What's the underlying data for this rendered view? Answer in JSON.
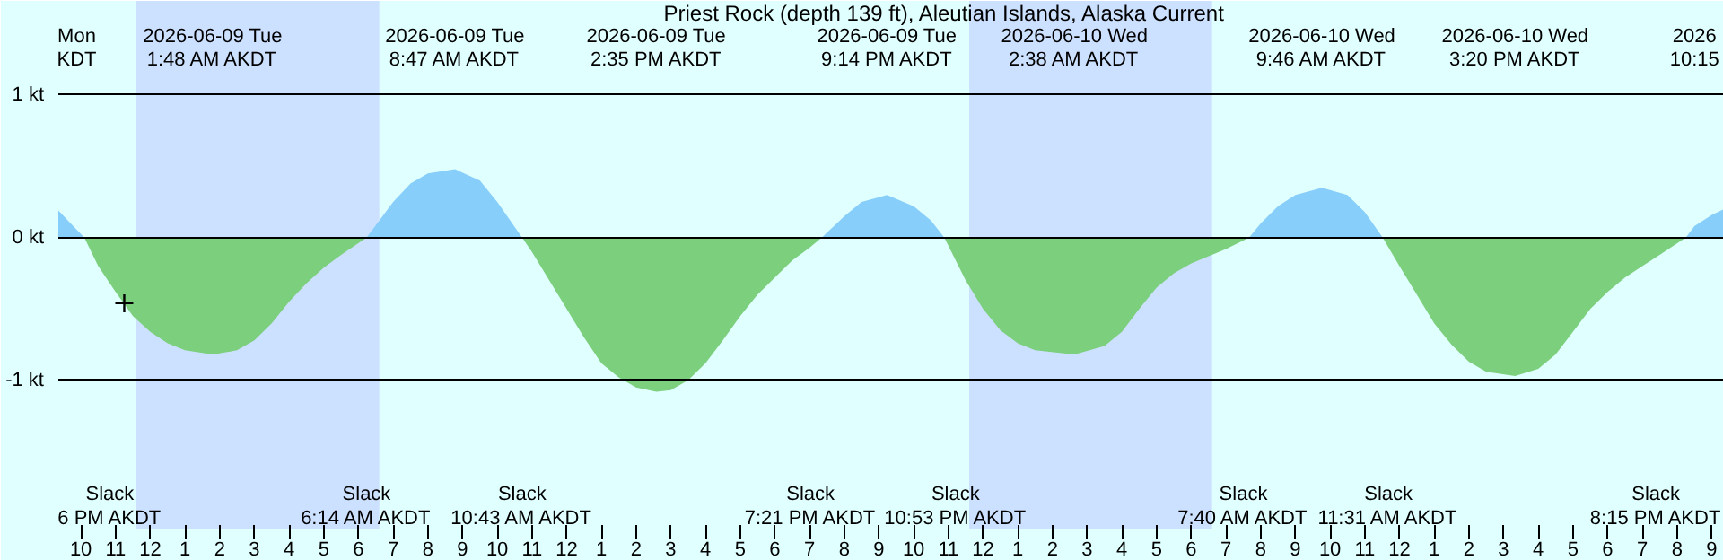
{
  "chart_data": {
    "type": "area",
    "title": "Priest Rock (depth 139 ft), Aleutian Islands, Alaska Current",
    "xlim": [
      "2026-06-08T21:21",
      "2026-06-10T21:21"
    ],
    "ylim": [
      -2.04,
      1.66
    ],
    "xticks": [
      {
        "value": "2026-06-08T22:00",
        "label": "10"
      },
      {
        "value": "2026-06-08T23:00",
        "label": "11"
      },
      {
        "value": "2026-06-09T00:00",
        "label": "12"
      },
      {
        "value": "2026-06-09T01:00",
        "label": "1"
      },
      {
        "value": "2026-06-09T02:00",
        "label": "2"
      },
      {
        "value": "2026-06-09T03:00",
        "label": "3"
      },
      {
        "value": "2026-06-09T04:00",
        "label": "4"
      },
      {
        "value": "2026-06-09T05:00",
        "label": "5"
      },
      {
        "value": "2026-06-09T06:00",
        "label": "6"
      },
      {
        "value": "2026-06-09T07:00",
        "label": "7"
      },
      {
        "value": "2026-06-09T08:00",
        "label": "8"
      },
      {
        "value": "2026-06-09T09:00",
        "label": "9"
      },
      {
        "value": "2026-06-09T10:00",
        "label": "10"
      },
      {
        "value": "2026-06-09T11:00",
        "label": "11"
      },
      {
        "value": "2026-06-09T12:00",
        "label": "12"
      },
      {
        "value": "2026-06-09T13:00",
        "label": "1"
      },
      {
        "value": "2026-06-09T14:00",
        "label": "2"
      },
      {
        "value": "2026-06-09T15:00",
        "label": "3"
      },
      {
        "value": "2026-06-09T16:00",
        "label": "4"
      },
      {
        "value": "2026-06-09T17:00",
        "label": "5"
      },
      {
        "value": "2026-06-09T18:00",
        "label": "6"
      },
      {
        "value": "2026-06-09T19:00",
        "label": "7"
      },
      {
        "value": "2026-06-09T20:00",
        "label": "8"
      },
      {
        "value": "2026-06-09T21:00",
        "label": "9"
      },
      {
        "value": "2026-06-09T22:00",
        "label": "10"
      },
      {
        "value": "2026-06-09T23:00",
        "label": "11"
      },
      {
        "value": "2026-06-10T00:00",
        "label": "12"
      },
      {
        "value": "2026-06-10T01:00",
        "label": "1"
      },
      {
        "value": "2026-06-10T02:00",
        "label": "2"
      },
      {
        "value": "2026-06-10T03:00",
        "label": "3"
      },
      {
        "value": "2026-06-10T04:00",
        "label": "4"
      },
      {
        "value": "2026-06-10T05:00",
        "label": "5"
      },
      {
        "value": "2026-06-10T06:00",
        "label": "6"
      },
      {
        "value": "2026-06-10T07:00",
        "label": "7"
      },
      {
        "value": "2026-06-10T08:00",
        "label": "8"
      },
      {
        "value": "2026-06-10T09:00",
        "label": "9"
      },
      {
        "value": "2026-06-10T10:00",
        "label": "10"
      },
      {
        "value": "2026-06-10T11:00",
        "label": "11"
      },
      {
        "value": "2026-06-10T12:00",
        "label": "12"
      },
      {
        "value": "2026-06-10T13:00",
        "label": "1"
      },
      {
        "value": "2026-06-10T14:00",
        "label": "2"
      },
      {
        "value": "2026-06-10T15:00",
        "label": "3"
      },
      {
        "value": "2026-06-10T16:00",
        "label": "4"
      },
      {
        "value": "2026-06-10T17:00",
        "label": "5"
      },
      {
        "value": "2026-06-10T18:00",
        "label": "6"
      },
      {
        "value": "2026-06-10T19:00",
        "label": "7"
      },
      {
        "value": "2026-06-10T20:00",
        "label": "8"
      },
      {
        "value": "2026-06-10T21:00",
        "label": "9"
      }
    ],
    "yticks": [
      {
        "value": 1,
        "label": "1 kt"
      },
      {
        "value": 0,
        "label": "0 kt"
      },
      {
        "value": -1,
        "label": "-1 kt"
      }
    ],
    "grid": "y",
    "bands": [
      {
        "axis": "x",
        "from": "2026-06-08T23:36",
        "to": "2026-06-09T06:36",
        "color": "#cce0ff"
      },
      {
        "axis": "x",
        "from": "2026-06-09T23:36",
        "to": "2026-06-10T06:36",
        "color": "#cce0ff"
      }
    ],
    "series": [
      {
        "color": "#87cefa",
        "x": [
          "2026-06-08T21:21",
          "2026-06-08T22:06",
          null,
          "2026-06-09T06:14",
          "2026-06-09T07:00",
          "2026-06-09T07:30",
          "2026-06-09T08:00",
          "2026-06-09T08:47",
          "2026-06-09T09:30",
          "2026-06-09T10:00",
          "2026-06-09T10:43",
          null,
          "2026-06-09T19:21",
          "2026-06-09T20:00",
          "2026-06-09T20:30",
          "2026-06-09T21:14",
          "2026-06-09T22:00",
          "2026-06-09T22:30",
          "2026-06-09T22:53",
          null,
          "2026-06-10T07:40",
          "2026-06-10T08:00",
          "2026-06-10T08:30",
          "2026-06-10T09:00",
          "2026-06-10T09:46",
          "2026-06-10T10:30",
          "2026-06-10T11:00",
          "2026-06-10T11:31",
          null,
          "2026-06-10T20:15",
          "2026-06-10T20:30",
          "2026-06-10T21:00",
          "2026-06-10T21:21"
        ],
        "values": [
          0.19,
          0,
          null,
          0,
          0.25,
          0.38,
          0.45,
          0.48,
          0.4,
          0.25,
          0,
          null,
          0,
          0.15,
          0.25,
          0.3,
          0.22,
          0.12,
          0,
          null,
          0,
          0.1,
          0.22,
          0.3,
          0.35,
          0.3,
          0.18,
          0,
          null,
          0,
          0.08,
          0.16,
          0.2
        ]
      },
      {
        "color": "#7ccf7c",
        "x": [
          "2026-06-08T22:06",
          "2026-06-08T22:30",
          "2026-06-08T23:00",
          "2026-06-08T23:30",
          "2026-06-09T00:00",
          "2026-06-09T00:30",
          "2026-06-09T01:00",
          "2026-06-09T01:48",
          "2026-06-09T02:30",
          "2026-06-09T03:00",
          "2026-06-09T03:30",
          "2026-06-09T04:00",
          "2026-06-09T04:30",
          "2026-06-09T05:00",
          "2026-06-09T05:30",
          "2026-06-09T06:14",
          null,
          "2026-06-09T10:43",
          "2026-06-09T11:00",
          "2026-06-09T11:30",
          "2026-06-09T12:00",
          "2026-06-09T12:30",
          "2026-06-09T13:00",
          "2026-06-09T13:30",
          "2026-06-09T14:00",
          "2026-06-09T14:35",
          "2026-06-09T15:00",
          "2026-06-09T15:30",
          "2026-06-09T16:00",
          "2026-06-09T16:30",
          "2026-06-09T17:00",
          "2026-06-09T17:30",
          "2026-06-09T18:00",
          "2026-06-09T18:30",
          "2026-06-09T19:00",
          "2026-06-09T19:21",
          null,
          "2026-06-09T22:53",
          "2026-06-09T23:30",
          "2026-06-10T00:00",
          "2026-06-10T00:30",
          "2026-06-10T01:00",
          "2026-06-10T01:30",
          "2026-06-10T02:38",
          "2026-06-10T03:30",
          "2026-06-10T04:00",
          "2026-06-10T04:30",
          "2026-06-10T05:00",
          "2026-06-10T05:30",
          "2026-06-10T06:00",
          "2026-06-10T06:30",
          "2026-06-10T07:00",
          "2026-06-10T07:40",
          null,
          "2026-06-10T11:31",
          "2026-06-10T12:00",
          "2026-06-10T12:30",
          "2026-06-10T13:00",
          "2026-06-10T13:30",
          "2026-06-10T14:00",
          "2026-06-10T14:30",
          "2026-06-10T15:20",
          "2026-06-10T16:00",
          "2026-06-10T16:30",
          "2026-06-10T17:00",
          "2026-06-10T17:30",
          "2026-06-10T18:00",
          "2026-06-10T18:30",
          "2026-06-10T19:00",
          "2026-06-10T19:30",
          "2026-06-10T20:15"
        ],
        "values": [
          0,
          -0.2,
          -0.38,
          -0.55,
          -0.66,
          -0.74,
          -0.79,
          -0.82,
          -0.79,
          -0.72,
          -0.6,
          -0.45,
          -0.32,
          -0.21,
          -0.12,
          0,
          null,
          0,
          -0.1,
          -0.3,
          -0.5,
          -0.7,
          -0.88,
          -0.98,
          -1.05,
          -1.08,
          -1.07,
          -1.0,
          -0.88,
          -0.72,
          -0.55,
          -0.4,
          -0.28,
          -0.16,
          -0.07,
          0,
          null,
          0,
          -0.3,
          -0.5,
          -0.65,
          -0.74,
          -0.79,
          -0.82,
          -0.76,
          -0.66,
          -0.5,
          -0.35,
          -0.25,
          -0.18,
          -0.13,
          -0.08,
          0,
          null,
          0,
          -0.2,
          -0.4,
          -0.6,
          -0.75,
          -0.87,
          -0.94,
          -0.97,
          -0.92,
          -0.82,
          -0.66,
          -0.5,
          -0.38,
          -0.28,
          -0.2,
          -0.12,
          0
        ]
      },
      {
        "type": "scatter",
        "color": "#000000",
        "marker": "cross",
        "x": [
          "2026-06-08T23:15"
        ],
        "values": [
          -0.46
        ]
      }
    ],
    "annotations": [
      "Mon\nKDT",
      "2026-06-09 Tue\n1:48 AM AKDT",
      "2026-06-09 Tue\n8:47 AM AKDT",
      "2026-06-09 Tue\n2:35 PM AKDT",
      "2026-06-09 Tue\n9:14 PM AKDT",
      "2026-06-10 Wed\n2:38 AM AKDT",
      "2026-06-10 Wed\n9:46 AM AKDT",
      "2026-06-10 Wed\n3:20 PM AKDT",
      "2026\n10:15",
      "Slack\n6 PM AKDT",
      "Slack\n6:14 AM AKDT",
      "Slack\n10:43 AM AKDT",
      "Slack\n7:21 PM AKDT",
      "Slack\n10:53 PM AKDT",
      "Slack\n7:40 AM AKDT",
      "Slack\n11:31 AM AKDT",
      "Slack\n8:15 PM AKDT"
    ]
  }
}
